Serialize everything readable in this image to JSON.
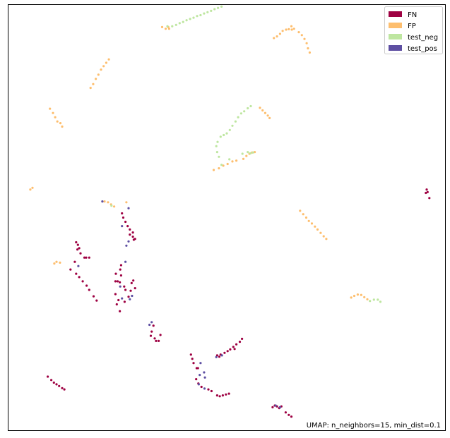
{
  "chart_data": {
    "type": "scatter",
    "title": "",
    "xlabel": "",
    "ylabel": "",
    "xlim": [
      0,
      100
    ],
    "ylim": [
      0,
      100
    ],
    "grid": false,
    "axes_ticks": false,
    "legend_placement": "top-right",
    "annotation": "UMAP: n_neighbors=15, min_dist=0.1",
    "series": [
      {
        "name": "FN",
        "color": "#9e0142",
        "points": [
          [
            26.0,
            51.0
          ],
          [
            26.3,
            50.0
          ],
          [
            26.8,
            49.0
          ],
          [
            27.3,
            48.0
          ],
          [
            27.8,
            47.2
          ],
          [
            28.5,
            46.5
          ],
          [
            28.5,
            45.5
          ],
          [
            28.7,
            44.8
          ],
          [
            27.8,
            46.0
          ],
          [
            29.0,
            45.0
          ],
          [
            15.5,
            44.2
          ],
          [
            15.9,
            43.6
          ],
          [
            16.2,
            42.8
          ],
          [
            15.8,
            42.5
          ],
          [
            16.5,
            41.6
          ],
          [
            17.4,
            40.6
          ],
          [
            17.8,
            40.6
          ],
          [
            18.5,
            40.6
          ],
          [
            15.2,
            39.6
          ],
          [
            14.2,
            37.8
          ],
          [
            15.5,
            36.8
          ],
          [
            16.2,
            36.0
          ],
          [
            17.0,
            35.0
          ],
          [
            17.9,
            34.0
          ],
          [
            18.5,
            33.0
          ],
          [
            19.5,
            31.5
          ],
          [
            20.2,
            30.5
          ],
          [
            25.8,
            38.8
          ],
          [
            25.6,
            37.8
          ],
          [
            24.6,
            36.8
          ],
          [
            25.8,
            36.4
          ],
          [
            24.5,
            35.0
          ],
          [
            25.0,
            35.0
          ],
          [
            25.5,
            34.8
          ],
          [
            26.5,
            33.8
          ],
          [
            26.8,
            33.0
          ],
          [
            24.5,
            32.0
          ],
          [
            25.2,
            30.6
          ],
          [
            24.8,
            29.6
          ],
          [
            25.5,
            28.0
          ],
          [
            26.6,
            30.2
          ],
          [
            27.5,
            31.4
          ],
          [
            28.0,
            32.8
          ],
          [
            28.2,
            34.6
          ],
          [
            28.6,
            35.2
          ],
          [
            29.0,
            33.4
          ],
          [
            33.2,
            24.6
          ],
          [
            32.8,
            23.2
          ],
          [
            32.6,
            22.2
          ],
          [
            33.8,
            21.0
          ],
          [
            34.4,
            21.0
          ],
          [
            34.8,
            22.4
          ],
          [
            33.5,
            21.6
          ],
          [
            41.8,
            17.8
          ],
          [
            42.1,
            16.8
          ],
          [
            42.4,
            15.8
          ],
          [
            43.1,
            14.6
          ],
          [
            43.4,
            14.6
          ],
          [
            43.0,
            12.0
          ],
          [
            43.5,
            11.0
          ],
          [
            44.2,
            10.2
          ],
          [
            45.8,
            9.6
          ],
          [
            46.5,
            9.2
          ],
          [
            47.8,
            8.2
          ],
          [
            48.4,
            8.0
          ],
          [
            49.1,
            8.2
          ],
          [
            49.8,
            8.4
          ],
          [
            50.5,
            8.6
          ],
          [
            47.8,
            17.6
          ],
          [
            48.3,
            17.3
          ],
          [
            48.6,
            17.8
          ],
          [
            49.5,
            18.2
          ],
          [
            50.2,
            18.6
          ],
          [
            50.8,
            19.0
          ],
          [
            51.5,
            19.6
          ],
          [
            52.2,
            20.2
          ],
          [
            53.0,
            20.8
          ],
          [
            53.5,
            21.5
          ],
          [
            51.8,
            19.1
          ],
          [
            60.5,
            5.4
          ],
          [
            61.0,
            5.8
          ],
          [
            61.5,
            5.6
          ],
          [
            62.0,
            5.2
          ],
          [
            62.5,
            5.6
          ],
          [
            63.5,
            4.2
          ],
          [
            64.2,
            3.6
          ],
          [
            64.8,
            3.2
          ],
          [
            9.0,
            12.6
          ],
          [
            9.8,
            11.8
          ],
          [
            10.4,
            11.2
          ],
          [
            11.0,
            10.8
          ],
          [
            11.6,
            10.4
          ],
          [
            12.3,
            9.9
          ],
          [
            12.8,
            9.6
          ],
          [
            95.8,
            56.6
          ],
          [
            95.6,
            55.8
          ],
          [
            96.0,
            56.0
          ],
          [
            96.4,
            54.6
          ]
        ]
      },
      {
        "name": "FP",
        "color": "#fdbe6e",
        "points": [
          [
            18.8,
            80.5
          ],
          [
            19.4,
            81.4
          ],
          [
            20.0,
            82.6
          ],
          [
            20.6,
            83.6
          ],
          [
            21.2,
            84.8
          ],
          [
            21.8,
            85.6
          ],
          [
            22.4,
            86.4
          ],
          [
            23.0,
            87.2
          ],
          [
            60.8,
            92.2
          ],
          [
            61.5,
            92.6
          ],
          [
            62.2,
            93.2
          ],
          [
            62.8,
            93.9
          ],
          [
            63.6,
            94.2
          ],
          [
            64.2,
            94.3
          ],
          [
            64.8,
            95.0
          ],
          [
            65.4,
            94.4
          ],
          [
            64.9,
            94.2
          ],
          [
            66.5,
            93.6
          ],
          [
            67.2,
            92.9
          ],
          [
            67.8,
            92.0
          ],
          [
            68.3,
            91.0
          ],
          [
            68.6,
            89.8
          ],
          [
            69.0,
            88.8
          ],
          [
            35.2,
            94.8
          ],
          [
            36.0,
            94.4
          ],
          [
            36.8,
            94.4
          ],
          [
            36.6,
            94.8
          ],
          [
            9.5,
            75.6
          ],
          [
            10.2,
            74.6
          ],
          [
            10.7,
            73.6
          ],
          [
            11.2,
            72.6
          ],
          [
            11.9,
            72.2
          ],
          [
            12.3,
            71.4
          ],
          [
            57.6,
            75.8
          ],
          [
            58.2,
            75.2
          ],
          [
            58.8,
            74.6
          ],
          [
            59.4,
            74.0
          ],
          [
            59.8,
            73.4
          ],
          [
            53.8,
            63.8
          ],
          [
            54.5,
            64.5
          ],
          [
            55.2,
            65.0
          ],
          [
            55.8,
            65.3
          ],
          [
            56.4,
            65.4
          ],
          [
            47.0,
            61.2
          ],
          [
            48.2,
            61.6
          ],
          [
            49.2,
            62.2
          ],
          [
            50.2,
            62.6
          ],
          [
            51.3,
            63.2
          ],
          [
            52.2,
            63.4
          ],
          [
            5.0,
            56.6
          ],
          [
            5.5,
            57.0
          ],
          [
            66.8,
            51.6
          ],
          [
            67.5,
            50.8
          ],
          [
            68.2,
            50.0
          ],
          [
            68.8,
            49.2
          ],
          [
            69.5,
            48.6
          ],
          [
            70.2,
            47.9
          ],
          [
            70.8,
            47.2
          ],
          [
            71.5,
            46.4
          ],
          [
            72.2,
            45.6
          ],
          [
            72.8,
            45.0
          ],
          [
            22.0,
            53.8
          ],
          [
            22.8,
            53.6
          ],
          [
            23.5,
            53.1
          ],
          [
            24.2,
            52.6
          ],
          [
            10.5,
            39.2
          ],
          [
            11.0,
            39.6
          ],
          [
            11.8,
            39.4
          ],
          [
            78.5,
            31.2
          ],
          [
            79.2,
            31.6
          ],
          [
            80.0,
            31.9
          ],
          [
            80.8,
            31.8
          ],
          [
            81.5,
            31.3
          ],
          [
            82.2,
            30.8
          ],
          [
            27.0,
            53.6
          ]
        ]
      },
      {
        "name": "test_neg",
        "color": "#bee6a0",
        "points": [
          [
            37.5,
            95.0
          ],
          [
            38.4,
            95.3
          ],
          [
            39.2,
            95.7
          ],
          [
            40.0,
            96.0
          ],
          [
            40.8,
            96.4
          ],
          [
            41.6,
            96.7
          ],
          [
            42.4,
            97.0
          ],
          [
            43.2,
            97.4
          ],
          [
            44.0,
            97.6
          ],
          [
            44.8,
            98.0
          ],
          [
            45.6,
            98.3
          ],
          [
            46.4,
            98.6
          ],
          [
            47.2,
            99.0
          ],
          [
            48.0,
            99.3
          ],
          [
            48.8,
            99.6
          ],
          [
            36.4,
            95.0
          ],
          [
            55.5,
            76.2
          ],
          [
            54.8,
            75.7
          ],
          [
            54.0,
            75.0
          ],
          [
            53.3,
            74.5
          ],
          [
            52.6,
            73.6
          ],
          [
            52.0,
            72.6
          ],
          [
            51.3,
            71.6
          ],
          [
            50.7,
            70.6
          ],
          [
            50.0,
            69.8
          ],
          [
            49.3,
            69.4
          ],
          [
            48.6,
            69.0
          ],
          [
            47.9,
            67.8
          ],
          [
            47.6,
            66.8
          ],
          [
            47.8,
            65.4
          ],
          [
            48.2,
            64.3
          ],
          [
            54.8,
            65.4
          ],
          [
            55.4,
            65.1
          ],
          [
            56.0,
            65.3
          ],
          [
            53.6,
            65.0
          ],
          [
            50.6,
            63.7
          ],
          [
            48.8,
            62.4
          ],
          [
            84.6,
            30.7
          ],
          [
            85.2,
            30.2
          ],
          [
            83.7,
            30.7
          ],
          [
            82.8,
            30.4
          ],
          [
            23.6,
            52.8
          ]
        ]
      },
      {
        "name": "test_pos",
        "color": "#5e4fa2",
        "points": [
          [
            27.5,
            52.2
          ],
          [
            26.0,
            48.0
          ],
          [
            27.5,
            44.4
          ],
          [
            27.0,
            43.4
          ],
          [
            16.0,
            38.6
          ],
          [
            21.5,
            53.8
          ],
          [
            26.8,
            39.6
          ],
          [
            27.8,
            30.8
          ],
          [
            28.3,
            31.6
          ],
          [
            26.0,
            31.0
          ],
          [
            25.6,
            33.8
          ],
          [
            32.8,
            25.4
          ],
          [
            32.3,
            24.8
          ],
          [
            44.8,
            13.6
          ],
          [
            45.0,
            12.4
          ],
          [
            43.8,
            13.0
          ],
          [
            44.0,
            15.8
          ],
          [
            62.2,
            5.4
          ],
          [
            61.2,
            5.8
          ],
          [
            47.6,
            17.2
          ],
          [
            48.9,
            17.6
          ],
          [
            43.6,
            10.8
          ],
          [
            44.9,
            9.8
          ]
        ]
      }
    ]
  }
}
